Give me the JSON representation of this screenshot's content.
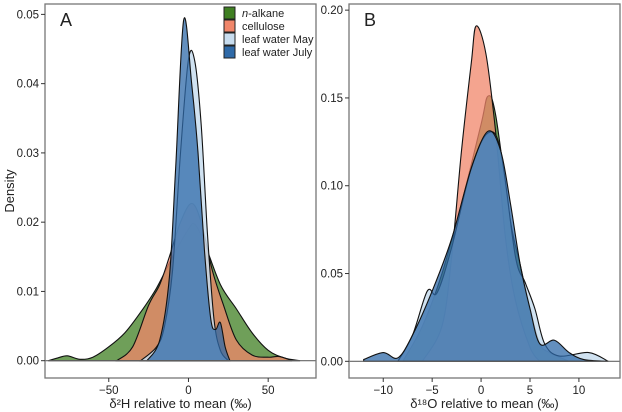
{
  "chart_data": [
    {
      "type": "area",
      "panel_label": "A",
      "xlabel": "δ²H relative to mean (‰)",
      "ylabel": "Density",
      "xlim": [
        -90,
        80
      ],
      "ylim": [
        -0.0025,
        0.0515
      ],
      "xticks": [
        -50,
        0,
        50
      ],
      "xtick_labels": [
        "−50",
        "0",
        "50"
      ],
      "yticks": [
        0,
        0.01,
        0.02,
        0.03,
        0.04,
        0.05
      ],
      "ytick_labels": [
        "0.00",
        "0.01",
        "0.02",
        "0.03",
        "0.04",
        "0.05"
      ],
      "legend_placement": "top-right",
      "series": [
        {
          "name": "n-alkane",
          "color": "#3f7f22",
          "points": [
            [
              -88,
              0
            ],
            [
              -82,
              0.0004
            ],
            [
              -76,
              0.0007
            ],
            [
              -68,
              0.0002
            ],
            [
              -60,
              0.0005
            ],
            [
              -50,
              0.002
            ],
            [
              -40,
              0.004
            ],
            [
              -30,
              0.007
            ],
            [
              -20,
              0.0105
            ],
            [
              -10,
              0.015
            ],
            [
              0,
              0.019
            ],
            [
              4,
              0.0197
            ],
            [
              10,
              0.017
            ],
            [
              20,
              0.011
            ],
            [
              30,
              0.0075
            ],
            [
              40,
              0.004
            ],
            [
              50,
              0.0015
            ],
            [
              60,
              0.0004
            ],
            [
              70,
              0
            ]
          ]
        },
        {
          "name": "cellulose",
          "color": "#f0866a",
          "points": [
            [
              -45,
              0
            ],
            [
              -35,
              0.002
            ],
            [
              -25,
              0.008
            ],
            [
              -18,
              0.011
            ],
            [
              -12,
              0.015
            ],
            [
              -5,
              0.02
            ],
            [
              2,
              0.0227
            ],
            [
              8,
              0.02
            ],
            [
              15,
              0.013
            ],
            [
              22,
              0.008
            ],
            [
              30,
              0.003
            ],
            [
              40,
              0.0008
            ],
            [
              50,
              0.0005
            ],
            [
              57,
              0.0006
            ],
            [
              65,
              0
            ]
          ]
        },
        {
          "name": "leaf water May",
          "color": "#c8ddef",
          "points": [
            [
              -30,
              0
            ],
            [
              -20,
              0.002
            ],
            [
              -15,
              0.005
            ],
            [
              -10,
              0.013
            ],
            [
              -5,
              0.03
            ],
            [
              0,
              0.0435
            ],
            [
              4,
              0.0432
            ],
            [
              8,
              0.034
            ],
            [
              12,
              0.018
            ],
            [
              16,
              0.006
            ],
            [
              20,
              0.0015
            ],
            [
              25,
              0
            ]
          ]
        },
        {
          "name": "leaf water July",
          "color": "#2f6aa8",
          "points": [
            [
              -26,
              0
            ],
            [
              -18,
              0.003
            ],
            [
              -12,
              0.012
            ],
            [
              -8,
              0.028
            ],
            [
              -3,
              0.0492
            ],
            [
              2,
              0.04
            ],
            [
              6,
              0.03
            ],
            [
              10,
              0.016
            ],
            [
              14,
              0.006
            ],
            [
              17,
              0.0045
            ],
            [
              20,
              0.0055
            ],
            [
              23,
              0.002
            ],
            [
              26,
              0
            ]
          ]
        }
      ]
    },
    {
      "type": "area",
      "panel_label": "B",
      "xlabel": "δ¹⁸O relative to mean (‰)",
      "ylabel": "",
      "xlim": [
        -13.5,
        14.2
      ],
      "ylim": [
        -0.0095,
        0.2035
      ],
      "xticks": [
        -10,
        -5,
        0,
        5,
        10
      ],
      "xtick_labels": [
        "−10",
        "−5",
        "0",
        "5",
        "10"
      ],
      "yticks": [
        0,
        0.05,
        0.1,
        0.15,
        0.2
      ],
      "ytick_labels": [
        "0.00",
        "0.05",
        "0.10",
        "0.15",
        "0.20"
      ],
      "series": [
        {
          "name": "n-alkane",
          "color": "#3f7f22",
          "points": [
            [
              -8,
              0
            ],
            [
              -6,
              0.02
            ],
            [
              -4,
              0.05
            ],
            [
              -2,
              0.09
            ],
            [
              0,
              0.135
            ],
            [
              0.7,
              0.151
            ],
            [
              1.5,
              0.14
            ],
            [
              3,
              0.08
            ],
            [
              4,
              0.055
            ],
            [
              5,
              0.03
            ],
            [
              6,
              0.01
            ],
            [
              7,
              0.005
            ],
            [
              9,
              0
            ]
          ]
        },
        {
          "name": "cellulose",
          "color": "#f0866a",
          "points": [
            [
              -6,
              0
            ],
            [
              -4,
              0.02
            ],
            [
              -3,
              0.06
            ],
            [
              -2,
              0.12
            ],
            [
              -1,
              0.17
            ],
            [
              -0.5,
              0.191
            ],
            [
              0.5,
              0.175
            ],
            [
              1.5,
              0.13
            ],
            [
              2.5,
              0.07
            ],
            [
              3.5,
              0.035
            ],
            [
              5,
              0.008
            ],
            [
              6,
              0
            ]
          ]
        },
        {
          "name": "leaf water May",
          "color": "#c8ddef",
          "points": [
            [
              -8.5,
              0
            ],
            [
              -7,
              0.015
            ],
            [
              -5.5,
              0.04
            ],
            [
              -4.5,
              0.039
            ],
            [
              -3,
              0.065
            ],
            [
              -1,
              0.11
            ],
            [
              0.7,
              0.13
            ],
            [
              2,
              0.12
            ],
            [
              3.5,
              0.06
            ],
            [
              4.5,
              0.045
            ],
            [
              5.5,
              0.03
            ],
            [
              6.5,
              0.01
            ],
            [
              8,
              0.003
            ],
            [
              11,
              0.005
            ],
            [
              13,
              0
            ]
          ]
        },
        {
          "name": "leaf water July",
          "color": "#2f6aa8",
          "points": [
            [
              -12,
              0.001
            ],
            [
              -10,
              0.005
            ],
            [
              -8.5,
              0.002
            ],
            [
              -7,
              0.015
            ],
            [
              -5,
              0.04
            ],
            [
              -3,
              0.07
            ],
            [
              -1,
              0.11
            ],
            [
              0.7,
              0.131
            ],
            [
              2,
              0.12
            ],
            [
              3,
              0.09
            ],
            [
              4,
              0.055
            ],
            [
              5,
              0.03
            ],
            [
              6,
              0.01
            ],
            [
              7.5,
              0.012
            ],
            [
              9,
              0.005
            ],
            [
              10.5,
              0.001
            ],
            [
              13,
              0
            ]
          ]
        }
      ]
    }
  ]
}
